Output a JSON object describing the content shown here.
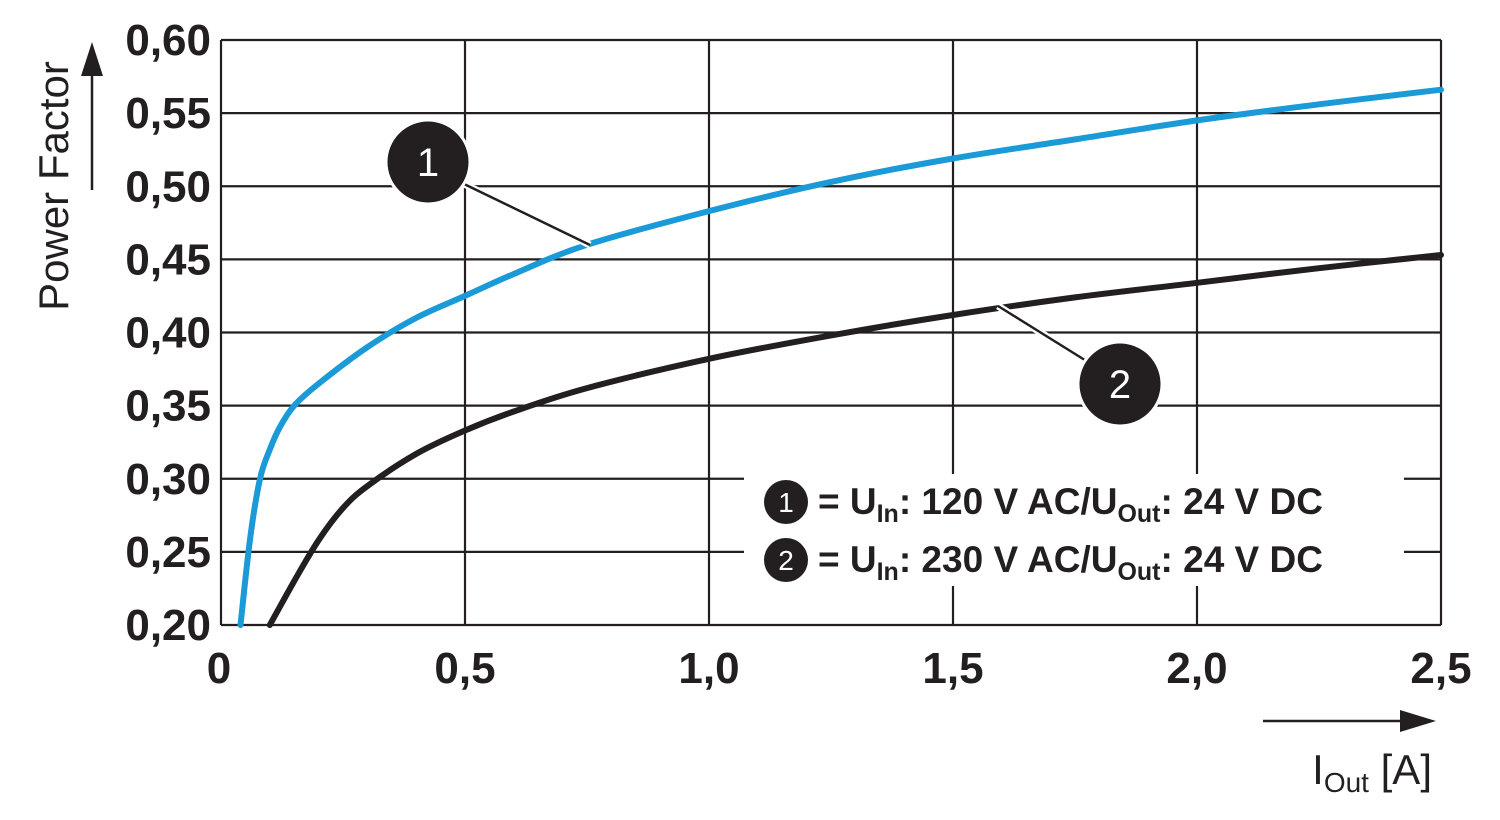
{
  "chart_data": {
    "type": "line",
    "xlabel": {
      "main": "I",
      "sub": "Out",
      "unit": " [A]"
    },
    "ylabel": "Power Factor",
    "xlim": [
      0,
      2.5
    ],
    "ylim": [
      0.2,
      0.6
    ],
    "x_ticks": [
      "0",
      "0,5",
      "1,0",
      "1,5",
      "2,0",
      "2,5"
    ],
    "y_ticks": [
      "0,20",
      "0,25",
      "0,30",
      "0,35",
      "0,40",
      "0,45",
      "0,50",
      "0,55",
      "0,60"
    ],
    "grid": true,
    "colors": {
      "series1": "#1a9ad6",
      "series2": "#231f20",
      "grid": "#231f20"
    },
    "series": [
      {
        "id": "1",
        "marker_label": "1",
        "x": [
          0.04,
          0.06,
          0.08,
          0.1,
          0.12,
          0.15,
          0.2,
          0.3,
          0.4,
          0.5,
          0.6,
          0.75,
          1.0,
          1.25,
          1.5,
          1.75,
          2.0,
          2.25,
          2.5
        ],
        "values": [
          0.2,
          0.26,
          0.3,
          0.32,
          0.335,
          0.35,
          0.365,
          0.39,
          0.41,
          0.425,
          0.44,
          0.46,
          0.483,
          0.503,
          0.519,
          0.532,
          0.545,
          0.556,
          0.566
        ]
      },
      {
        "id": "2",
        "marker_label": "2",
        "x": [
          0.1,
          0.15,
          0.2,
          0.25,
          0.3,
          0.4,
          0.5,
          0.6,
          0.75,
          1.0,
          1.25,
          1.5,
          1.75,
          2.0,
          2.25,
          2.5
        ],
        "values": [
          0.2,
          0.23,
          0.258,
          0.28,
          0.295,
          0.317,
          0.333,
          0.346,
          0.362,
          0.382,
          0.398,
          0.412,
          0.424,
          0.434,
          0.444,
          0.453
        ]
      }
    ],
    "legend": {
      "position": "bottom-right",
      "entries": [
        {
          "marker": "1",
          "prefix": "= U",
          "sub1": "In",
          "mid": ": 120 V AC/U",
          "sub2": "Out",
          "suffix": ": 24 V DC"
        },
        {
          "marker": "2",
          "prefix": "= U",
          "sub1": "In",
          "mid": ": 230 V AC/U",
          "sub2": "Out",
          "suffix": ": 24 V DC"
        }
      ]
    }
  }
}
